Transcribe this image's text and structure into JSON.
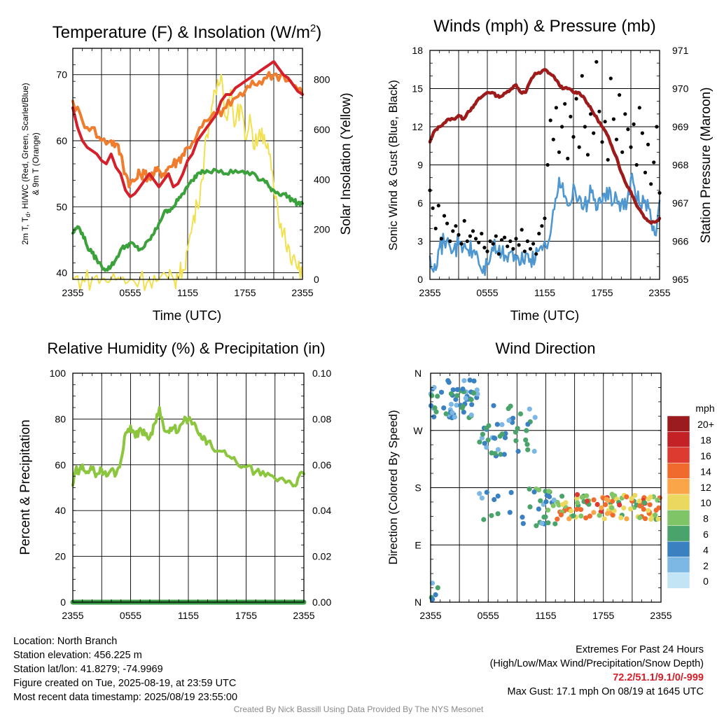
{
  "chart_data": [
    {
      "type": "line",
      "title": "Temperature (F) & Insolation (W/m²)",
      "title_main": "Temperature (F) & Insolation (W/m",
      "title_sup": "2",
      "title_end": ")",
      "xlabel": "Time (UTC)",
      "ylabel_line1": "2m T, Tₐ, HI/WC (Red, Green, Scarlet/Blue)",
      "ylabel_line1_pre": "2m T, T",
      "ylabel_line1_sub": "d",
      "ylabel_line1_post": ", HI/WC (Red, Green, Scarlet/Blue)",
      "ylabel_line2": "& 9m T (Orange)",
      "y2label": "Solar Insolation (Yellow)",
      "x_ticks": [
        "2355",
        "0555",
        "1155",
        "1755",
        "2355"
      ],
      "xlim": [
        0,
        24
      ],
      "ylim": [
        39,
        74
      ],
      "y_ticks": [
        40,
        50,
        60,
        70
      ],
      "y2lim": [
        0,
        925
      ],
      "y2_ticks": [
        0,
        200,
        400,
        600,
        800
      ],
      "series": [
        {
          "axis": "left",
          "color": "#d3202a",
          "x": [
            0,
            0.5,
            1,
            1.5,
            2,
            2.5,
            3,
            3.5,
            4,
            4.5,
            5,
            5.5,
            6,
            6.5,
            7,
            7.5,
            8,
            8.5,
            9,
            9.5,
            10,
            10.5,
            11,
            11.5,
            12,
            12.5,
            13,
            13.5,
            14,
            14.5,
            15,
            15.5,
            16,
            16.5,
            17,
            17.5,
            18,
            18.5,
            19,
            19.5,
            20,
            20.5,
            21,
            21.5,
            22,
            22.5,
            23,
            23.5,
            24
          ],
          "values": [
            65,
            62,
            60,
            59,
            58.5,
            58,
            57,
            56.5,
            58,
            56,
            55,
            52.5,
            51.5,
            52,
            53,
            54,
            55,
            54,
            53,
            54,
            55,
            53,
            53.5,
            55,
            57,
            58,
            60,
            61,
            62,
            63,
            64,
            66,
            67,
            67,
            68,
            68.5,
            69,
            69.5,
            70,
            70.5,
            71,
            71.5,
            72,
            71,
            70,
            69.5,
            68.5,
            67.5,
            67
          ]
        },
        {
          "axis": "left",
          "color": "#f07c2d",
          "x": [
            0,
            1,
            2,
            3,
            4,
            4.5,
            5,
            5.5,
            6,
            6.5,
            7,
            7.5,
            8,
            8.5,
            9,
            9.5,
            10,
            10.5,
            11,
            11.5,
            12,
            13,
            14,
            15,
            16,
            17,
            18,
            19,
            20,
            21,
            22,
            23,
            24
          ],
          "values": [
            66,
            63,
            62,
            60,
            60,
            59.5,
            58,
            55,
            53.5,
            54,
            55,
            55,
            54.5,
            55,
            55.5,
            55,
            56,
            56.5,
            57,
            58,
            59,
            61,
            63,
            64,
            65,
            66.5,
            67.5,
            68.5,
            69.5,
            70,
            70,
            68.5,
            67
          ]
        },
        {
          "axis": "left",
          "color": "#3aa13b",
          "x": [
            0,
            0.5,
            1,
            1.5,
            2,
            2.5,
            3,
            3.5,
            4,
            4.5,
            5,
            5.5,
            6,
            6.5,
            7,
            7.5,
            8,
            8.5,
            9,
            9.5,
            10,
            10.5,
            11,
            11.5,
            12,
            12.5,
            13,
            13.5,
            14,
            15,
            16,
            17,
            18,
            19,
            19.5,
            20,
            20.5,
            21,
            21.5,
            22,
            22.5,
            23,
            23.5,
            24
          ],
          "values": [
            46,
            47,
            46,
            44,
            43,
            42,
            41,
            40.5,
            41,
            42,
            43.5,
            44,
            44.5,
            44,
            43.5,
            44,
            45,
            46,
            47.5,
            49,
            49.5,
            50,
            51,
            52,
            53,
            54,
            55,
            55.5,
            55.5,
            55.5,
            55,
            55.5,
            55,
            55,
            54,
            54,
            53,
            52.5,
            52,
            52,
            51.5,
            51,
            50.5,
            50.5
          ]
        },
        {
          "axis": "right",
          "color": "#f3e04f",
          "x": [
            0,
            1,
            2,
            3,
            4,
            5,
            6,
            7,
            8,
            9,
            10,
            10.5,
            11,
            11.5,
            12,
            12.5,
            13,
            13.5,
            14,
            14.5,
            15,
            15.5,
            16,
            16.5,
            17,
            17.5,
            18,
            18.5,
            19,
            19.5,
            20,
            20.5,
            21,
            21.5,
            22,
            22.5,
            23,
            23.5,
            24
          ],
          "values": [
            0,
            0,
            0,
            0,
            0,
            0,
            0,
            0,
            0,
            0,
            0,
            2,
            10,
            40,
            120,
            220,
            300,
            400,
            580,
            690,
            740,
            820,
            650,
            760,
            620,
            700,
            560,
            660,
            520,
            600,
            580,
            500,
            360,
            240,
            190,
            140,
            90,
            40,
            10
          ]
        }
      ]
    },
    {
      "type": "line+scatter",
      "title": "Winds (mph) & Pressure (mb)",
      "xlabel": "Time (UTC)",
      "ylabel": "Sonic Wind & Gust (Blue, Black)",
      "y2label": "Station Pressure (Maroon)",
      "x_ticks": [
        "2355",
        "0555",
        "1155",
        "1755",
        "2355"
      ],
      "xlim": [
        0,
        24
      ],
      "ylim": [
        0,
        18
      ],
      "y_ticks": [
        0,
        3,
        6,
        9,
        12,
        15,
        18
      ],
      "y2lim": [
        965,
        971
      ],
      "y2_ticks": [
        965,
        966,
        967,
        968,
        969,
        970,
        971
      ],
      "series": [
        {
          "name": "wind",
          "axis": "left",
          "color": "#4e97d1",
          "x": [
            0,
            0.5,
            1,
            1.5,
            2,
            2.5,
            3,
            3.5,
            4,
            4.5,
            5,
            5.5,
            6,
            6.5,
            7,
            7.5,
            8,
            8.5,
            9,
            9.5,
            10,
            10.5,
            11,
            11.5,
            12,
            12.5,
            13,
            13.5,
            14,
            14.5,
            15,
            15.5,
            16,
            16.5,
            17,
            17.5,
            18,
            18.5,
            19,
            19.5,
            20,
            20.5,
            21,
            21.5,
            22,
            22.5,
            23,
            23.5,
            24
          ],
          "values": [
            1.8,
            1.2,
            2.5,
            2.9,
            2.8,
            2.4,
            2.7,
            2.5,
            2.3,
            2.2,
            1.8,
            0.5,
            1.2,
            2.5,
            2.2,
            2.0,
            1.8,
            2.2,
            1.5,
            1.2,
            2.0,
            1.6,
            1.5,
            2.5,
            3.0,
            3.2,
            5.5,
            8.0,
            6.5,
            5.8,
            7.5,
            6.2,
            5.5,
            6.2,
            7.0,
            5.5,
            6.0,
            7.2,
            5.8,
            6.5,
            6.0,
            5.5,
            8.0,
            6.5,
            5.8,
            6.2,
            5.5,
            3.5,
            6.2
          ]
        },
        {
          "name": "gust",
          "axis": "left",
          "color": "#000000",
          "x": [
            0,
            0.3,
            0.6,
            0.9,
            1.2,
            1.5,
            1.8,
            2.1,
            2.4,
            2.7,
            3,
            3.3,
            3.6,
            3.9,
            4.2,
            4.5,
            4.8,
            5.1,
            5.4,
            5.7,
            6,
            6.3,
            6.6,
            6.9,
            7.2,
            7.5,
            7.8,
            8.1,
            8.4,
            8.7,
            9,
            9.3,
            9.6,
            9.9,
            10.2,
            10.5,
            10.8,
            11.1,
            11.4,
            11.7,
            12,
            12.3,
            12.6,
            12.9,
            13.2,
            13.5,
            13.8,
            14.1,
            14.4,
            14.7,
            15,
            15.3,
            15.6,
            15.9,
            16.2,
            16.5,
            16.8,
            17.1,
            17.4,
            17.7,
            18,
            18.3,
            18.6,
            18.9,
            19.2,
            19.5,
            19.8,
            20.1,
            20.4,
            20.7,
            21,
            21.3,
            21.6,
            21.9,
            22.2,
            22.5,
            22.8,
            23.1,
            23.4,
            23.7,
            24
          ],
          "values": [
            7.0,
            5.6,
            4.0,
            5.8,
            3.2,
            5.0,
            4.4,
            3.0,
            3.8,
            4.2,
            3.5,
            2.8,
            4.6,
            3.0,
            3.4,
            3.8,
            3.2,
            2.9,
            3.6,
            2.5,
            2.2,
            3.0,
            2.8,
            3.4,
            2.0,
            3.1,
            3.3,
            2.6,
            3.0,
            2.4,
            3.2,
            2.7,
            3.9,
            2.2,
            3.0,
            2.4,
            2.8,
            2.0,
            3.6,
            4.2,
            4.8,
            9.0,
            12.5,
            11.0,
            13.5,
            10.0,
            12.0,
            13.8,
            9.5,
            12.8,
            11.2,
            14.2,
            10.4,
            16.0,
            12.0,
            9.8,
            13.0,
            11.5,
            17.1,
            13.2,
            10.8,
            12.4,
            9.4,
            15.8,
            12.6,
            11.0,
            14.5,
            10.0,
            13.0,
            11.8,
            10.4,
            12.2,
            9.0,
            13.5,
            11.5,
            8.4,
            10.6,
            7.5,
            9.2,
            12.0,
            6.8
          ]
        },
        {
          "name": "pressure",
          "axis": "right",
          "color": "#9d1b1b",
          "x": [
            0,
            0.5,
            1,
            1.5,
            2,
            2.5,
            3,
            3.5,
            4,
            4.5,
            5,
            5.5,
            6,
            6.5,
            7,
            7.5,
            8,
            8.5,
            9,
            9.5,
            10,
            10.5,
            11,
            11.5,
            12,
            12.5,
            13,
            13.5,
            14,
            14.5,
            15,
            15.5,
            16,
            16.5,
            17,
            17.5,
            18,
            18.5,
            19,
            19.5,
            20,
            20.5,
            21,
            21.5,
            22,
            22.5,
            23,
            23.5,
            24
          ],
          "values": [
            968.6,
            968.9,
            969.0,
            969.1,
            969.2,
            969.2,
            969.3,
            969.2,
            969.4,
            969.5,
            969.7,
            969.8,
            969.9,
            969.9,
            969.8,
            969.8,
            969.9,
            970.0,
            970.1,
            969.9,
            969.9,
            970.2,
            970.4,
            970.4,
            970.5,
            970.4,
            970.3,
            970.1,
            970.0,
            970.0,
            969.9,
            969.9,
            969.8,
            969.6,
            969.4,
            969.2,
            969.0,
            968.8,
            968.5,
            968.2,
            967.8,
            967.5,
            967.3,
            967.0,
            966.8,
            966.6,
            966.5,
            966.5,
            966.6
          ]
        }
      ]
    },
    {
      "type": "line",
      "title": "Relative Humidity (%) & Precipitation (in)",
      "xlabel": "",
      "ylabel": "Percent & Precipitation",
      "x_ticks": [
        "2355",
        "0555",
        "1155",
        "1755",
        "2355"
      ],
      "xlim": [
        0,
        24
      ],
      "ylim": [
        0,
        100
      ],
      "y_ticks": [
        0,
        20,
        40,
        60,
        80,
        100
      ],
      "y2lim": [
        0,
        0.1
      ],
      "y2_ticks": [
        "0.00",
        "0.02",
        "0.04",
        "0.06",
        "0.08",
        "0.10"
      ],
      "series": [
        {
          "name": "rh",
          "axis": "left",
          "color": "#8cc63f",
          "x": [
            0,
            0.3,
            0.6,
            1,
            1.5,
            2,
            2.5,
            3,
            3.5,
            4,
            4.5,
            5,
            5.5,
            6,
            6.5,
            7,
            7.5,
            8,
            8.5,
            9,
            9.5,
            10,
            10.5,
            11,
            11.5,
            12,
            12.5,
            13,
            13.5,
            14,
            15,
            16,
            17,
            18,
            19,
            20,
            21,
            22,
            22.5,
            23,
            23.5,
            24
          ],
          "values": [
            51,
            58,
            56,
            60,
            57,
            58,
            56,
            58,
            55,
            58,
            56,
            62,
            74,
            77,
            72,
            76,
            73,
            72,
            78,
            85,
            75,
            74,
            76,
            75,
            79,
            80,
            78,
            74,
            71,
            70,
            66,
            64,
            61,
            59,
            57,
            55,
            54,
            53,
            53,
            51,
            55,
            56
          ]
        },
        {
          "name": "precip",
          "axis": "right",
          "color": "#3a9a46",
          "x": [
            0,
            24
          ],
          "values": [
            0,
            0
          ]
        }
      ]
    },
    {
      "type": "scatter",
      "title": "Wind Direction",
      "ylabel": "Direction (Colored By Speed)",
      "x_ticks": [
        "2355",
        "0555",
        "1155",
        "1755",
        "2355"
      ],
      "xlim": [
        0,
        24
      ],
      "y_ticks": [
        "N",
        "E",
        "S",
        "W",
        "N"
      ],
      "ylim": [
        0,
        360
      ],
      "colorbar": {
        "unit": "mph",
        "labels": [
          "20+",
          "18",
          "16",
          "14",
          "12",
          "10",
          "8",
          "6",
          "4",
          "2",
          "0"
        ],
        "colors": [
          "#9b1b1e",
          "#c32126",
          "#dd3a30",
          "#f06a2e",
          "#fba549",
          "#ebd95f",
          "#7fc467",
          "#49a36a",
          "#3a81c1",
          "#7cb8e3",
          "#c2e4f5"
        ]
      }
    }
  ],
  "info": {
    "location": "Location: North Branch",
    "elevation": "Station elevation: 456.225 m",
    "latlon": "Station lat/lon: 41.8279; -74.9969",
    "created": "Figure created on Tue, 2025-08-19, at 23:59 UTC",
    "recent": "Most recent data timestamp: 2025/08/19 23:55:00"
  },
  "extremes": {
    "title": "Extremes For Past 24 Hours",
    "subtitle": "(High/Low/Max Wind/Precipitation/Snow Depth)",
    "values": "72.2/51.1/9.1/0/-999",
    "gust": "Max Gust: 17.1 mph On 08/19 at 1645 UTC"
  },
  "credit": "Created By Nick Bassill Using Data Provided By The NYS Mesonet"
}
